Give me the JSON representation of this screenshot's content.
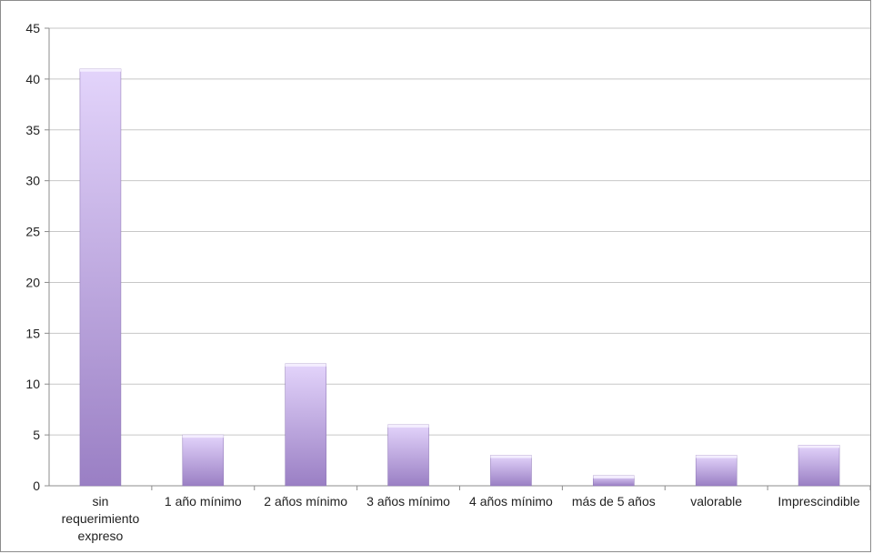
{
  "chart_data": {
    "type": "bar",
    "title": "",
    "xlabel": "",
    "ylabel": "",
    "categories": [
      "sin requerimiento expreso",
      "1 año mínimo",
      "2 años mínimo",
      "3 años mínimo",
      "4 años mínimo",
      "más de 5 años",
      "valorable",
      "Imprescindible"
    ],
    "category_label_lines": [
      [
        "sin",
        "requerimiento",
        "expreso"
      ],
      [
        "1 año mínimo"
      ],
      [
        "2 años mínimo"
      ],
      [
        "3 años mínimo"
      ],
      [
        "4 años mínimo"
      ],
      [
        "más de 5 años"
      ],
      [
        "valorable"
      ],
      [
        "Imprescindible"
      ]
    ],
    "values": [
      41,
      5,
      12,
      6,
      3,
      1,
      3,
      4
    ],
    "ylim": [
      0,
      45
    ],
    "yticks": [
      0,
      5,
      10,
      15,
      20,
      25,
      30,
      35,
      40,
      45
    ],
    "grid": true,
    "legend": "none",
    "colors": {
      "bar_top": "#e3d4fb",
      "bar_bottom": "#9a7fc4",
      "bar_cap": "#f4eefe",
      "grid": "#c7c7c7",
      "axis": "#8c8c8c"
    }
  }
}
